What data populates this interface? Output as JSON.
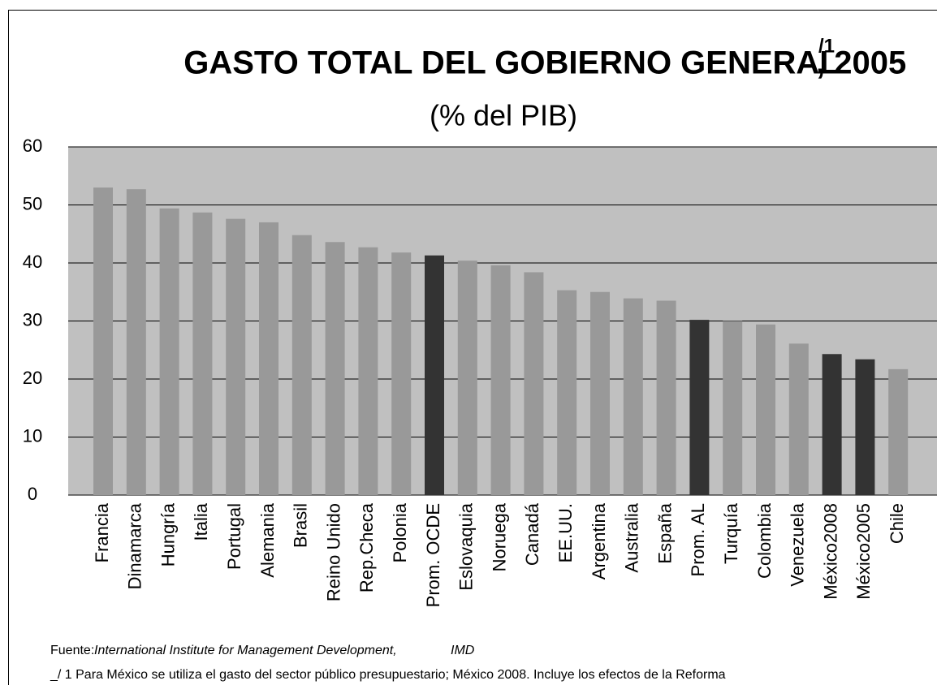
{
  "chart_data": {
    "type": "bar",
    "title": "GASTO TOTAL DEL GOBIERNO GENERAL",
    "title_note": "/1",
    "title_year": ", 2005",
    "subtitle": "(% del PIB)",
    "categories": [
      "Francia",
      "Dinamarca",
      "Hungría",
      "Italia",
      "Portugal",
      "Alemania",
      "Brasil",
      "Reino Unido",
      "Rep.Checa",
      "Polonia",
      "Prom. OCDE",
      "Eslovaquia",
      "Noruega",
      "Canadá",
      "EE.UU.",
      "Argentina",
      "Australia",
      "España",
      "Prom. AL",
      "Turquía",
      "Colombia",
      "Venezuela",
      "México2008",
      "México2005",
      "Chile"
    ],
    "values": [
      53.0,
      52.7,
      49.4,
      48.7,
      47.6,
      47.0,
      44.8,
      43.6,
      42.7,
      41.8,
      41.3,
      40.4,
      39.6,
      38.4,
      35.3,
      35.0,
      33.9,
      33.5,
      30.2,
      30.0,
      29.4,
      26.1,
      24.3,
      23.4,
      21.7
    ],
    "colors": [
      "#999999",
      "#999999",
      "#999999",
      "#999999",
      "#999999",
      "#999999",
      "#999999",
      "#999999",
      "#999999",
      "#999999",
      "#333333",
      "#999999",
      "#999999",
      "#999999",
      "#999999",
      "#999999",
      "#999999",
      "#999999",
      "#333333",
      "#999999",
      "#999999",
      "#999999",
      "#333333",
      "#333333",
      "#999999"
    ],
    "ylim": [
      0,
      60
    ],
    "yticks": [
      0,
      10,
      20,
      30,
      40,
      50,
      60
    ],
    "grid": true,
    "source_label": "Fuente:",
    "source": "International Institute for Management Development,",
    "source_extra": "IMD",
    "note": "_/ 1 Para México se utiliza el gasto del sector público presupuestario; México 2008. Incluye los efectos de la Reforma"
  }
}
